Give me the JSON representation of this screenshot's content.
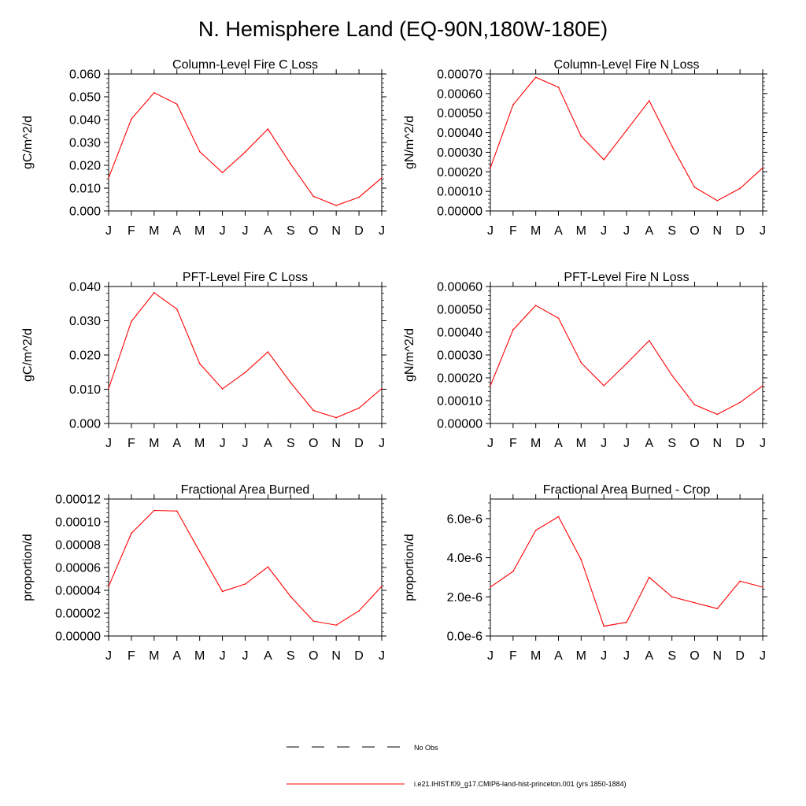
{
  "title": "N. Hemisphere Land (EQ-90N,180W-180E)",
  "line_color": "#ff0000",
  "months": [
    "J",
    "F",
    "M",
    "A",
    "M",
    "J",
    "J",
    "A",
    "S",
    "O",
    "N",
    "D",
    "J"
  ],
  "chart_data": [
    {
      "type": "line",
      "title": "Column-Level Fire C Loss",
      "ylabel": "gC/m^2/d",
      "ylim": [
        0,
        0.06
      ],
      "yticks": [
        "0.000",
        "0.010",
        "0.020",
        "0.030",
        "0.040",
        "0.050",
        "0.060"
      ],
      "series": [
        {
          "values": [
            0.0145,
            0.0403,
            0.0518,
            0.0468,
            0.026,
            0.0168,
            0.0258,
            0.0359,
            0.0205,
            0.0064,
            0.0024,
            0.006,
            0.0145
          ]
        }
      ]
    },
    {
      "type": "line",
      "title": "Column-Level Fire N Loss",
      "ylabel": "gN/m^2/d",
      "ylim": [
        0,
        0.0007
      ],
      "yticks": [
        "0.00000",
        "0.00010",
        "0.00020",
        "0.00030",
        "0.00040",
        "0.00050",
        "0.00060",
        "0.00070"
      ],
      "series": [
        {
          "values": [
            0.00022,
            0.000542,
            0.000683,
            0.000632,
            0.000382,
            0.000262,
            0.000412,
            0.000563,
            0.000332,
            0.000121,
            5.3e-05,
            0.000115,
            0.00022
          ]
        }
      ]
    },
    {
      "type": "line",
      "title": "PFT-Level Fire C Loss",
      "ylabel": "gC/m^2/d",
      "ylim": [
        0,
        0.04
      ],
      "yticks": [
        "0.000",
        "0.010",
        "0.020",
        "0.030",
        "0.040"
      ],
      "series": [
        {
          "values": [
            0.0102,
            0.0298,
            0.0382,
            0.0334,
            0.0175,
            0.0101,
            0.0149,
            0.0209,
            0.0119,
            0.0038,
            0.0017,
            0.0045,
            0.0102
          ]
        }
      ]
    },
    {
      "type": "line",
      "title": "PFT-Level Fire N Loss",
      "ylabel": "gN/m^2/d",
      "ylim": [
        0,
        0.0006
      ],
      "yticks": [
        "0.00000",
        "0.00010",
        "0.00020",
        "0.00030",
        "0.00040",
        "0.00050",
        "0.00060"
      ],
      "series": [
        {
          "values": [
            0.000165,
            0.00041,
            0.000517,
            0.000461,
            0.000266,
            0.000166,
            0.000262,
            0.000363,
            0.000211,
            8.2e-05,
            4e-05,
            9.2e-05,
            0.000165
          ]
        }
      ]
    },
    {
      "type": "line",
      "title": "Fractional Area Burned",
      "ylabel": "proportion/d",
      "ylim": [
        0,
        0.00012
      ],
      "yticks": [
        "0.00000",
        "0.00002",
        "0.00004",
        "0.00006",
        "0.00008",
        "0.00010",
        "0.00012"
      ],
      "series": [
        {
          "values": [
            4.35e-05,
            9e-05,
            0.00011,
            0.0001095,
            7.4e-05,
            3.9e-05,
            4.55e-05,
            6.05e-05,
            3.45e-05,
            1.3e-05,
            9.5e-06,
            2.2e-05,
            4.35e-05
          ]
        }
      ]
    },
    {
      "type": "line",
      "title": "Fractional Area Burned - Crop",
      "ylabel": "proportion/d",
      "ylim": [
        0,
        7e-06
      ],
      "yticks": [
        "0.0e-6",
        "2.0e-6",
        "4.0e-6",
        "6.0e-6"
      ],
      "series": [
        {
          "values": [
            2.5e-06,
            3.3e-06,
            5.4e-06,
            6.1e-06,
            3.9e-06,
            5e-07,
            7e-07,
            3e-06,
            2e-06,
            1.7e-06,
            1.4e-06,
            2.8e-06,
            2.5e-06
          ]
        }
      ]
    }
  ],
  "legend": {
    "items": [
      {
        "label": "No Obs",
        "style": "dashed",
        "color": "#000000"
      },
      {
        "label": "i.e21.IHIST.f09_g17.CMIP6-land-hist-princeton.001 (yrs 1850-1884)",
        "style": "solid",
        "color": "#ff0000"
      }
    ]
  }
}
